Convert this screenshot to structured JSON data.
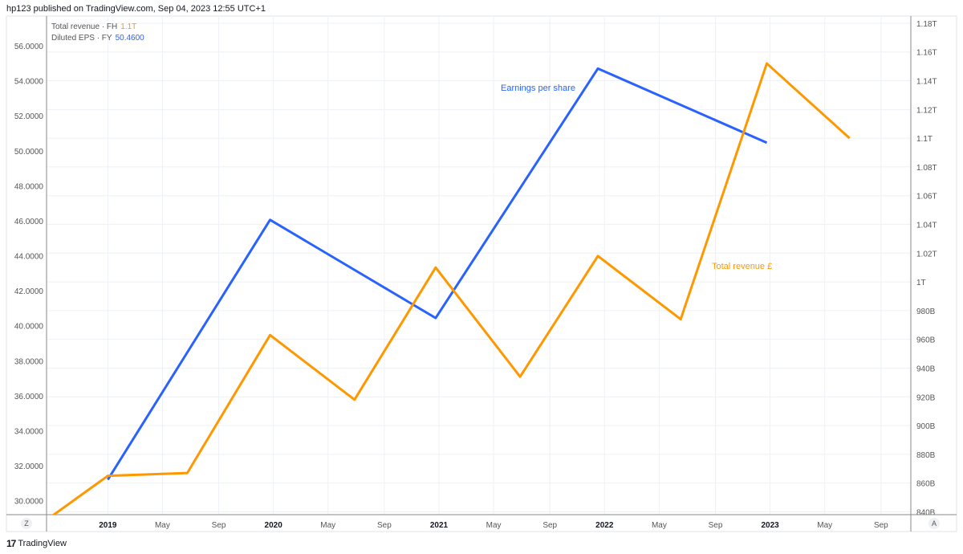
{
  "header": {
    "text": "hp123 published on TradingView.com, Sep 04, 2023 12:55 UTC+1"
  },
  "legend": [
    {
      "label": "Total revenue · FH",
      "value": "1.1T",
      "color": "#ff9800"
    },
    {
      "label": "Diluted EPS · FY",
      "value": "50.4600",
      "color": "#2962ff"
    }
  ],
  "annotations": {
    "eps": "Earnings per share",
    "revenue": "Total revenue £"
  },
  "corners": {
    "left": "Z",
    "right": "A"
  },
  "footer": {
    "logo": "17",
    "brand": "TradingView"
  },
  "chart_data": {
    "type": "line",
    "x_ticks": [
      {
        "x": 2019.0,
        "label": "2019",
        "bold": true
      },
      {
        "x": 2019.33,
        "label": "May"
      },
      {
        "x": 2019.67,
        "label": "Sep"
      },
      {
        "x": 2020.0,
        "label": "2020",
        "bold": true
      },
      {
        "x": 2020.33,
        "label": "May"
      },
      {
        "x": 2020.67,
        "label": "Sep"
      },
      {
        "x": 2021.0,
        "label": "2021",
        "bold": true
      },
      {
        "x": 2021.33,
        "label": "May"
      },
      {
        "x": 2021.67,
        "label": "Sep"
      },
      {
        "x": 2022.0,
        "label": "2022",
        "bold": true
      },
      {
        "x": 2022.33,
        "label": "May"
      },
      {
        "x": 2022.67,
        "label": "Sep"
      },
      {
        "x": 2023.0,
        "label": "2023",
        "bold": true
      },
      {
        "x": 2023.33,
        "label": "May"
      },
      {
        "x": 2023.67,
        "label": "Sep"
      }
    ],
    "xlim": [
      2018.63,
      2023.85
    ],
    "left_axis": {
      "ylim": [
        29.2,
        57.7
      ],
      "ticks": [
        "56.0000",
        "54.0000",
        "52.0000",
        "50.0000",
        "48.0000",
        "46.0000",
        "44.0000",
        "42.0000",
        "40.0000",
        "38.0000",
        "36.0000",
        "34.0000",
        "32.0000",
        "30.0000"
      ],
      "tick_values": [
        56,
        54,
        52,
        50,
        48,
        46,
        44,
        42,
        40,
        38,
        36,
        34,
        32,
        30
      ]
    },
    "right_axis": {
      "ylim": [
        838,
        1185
      ],
      "ticks": [
        "1.18T",
        "1.16T",
        "1.14T",
        "1.12T",
        "1.1T",
        "1.08T",
        "1.06T",
        "1.04T",
        "1.02T",
        "1T",
        "980B",
        "960B",
        "940B",
        "920B",
        "900B",
        "880B",
        "860B",
        "840B"
      ],
      "tick_values": [
        1180,
        1160,
        1140,
        1120,
        1100,
        1080,
        1060,
        1040,
        1020,
        1000,
        980,
        960,
        940,
        920,
        900,
        880,
        860,
        840
      ],
      "unit": "B"
    },
    "series": [
      {
        "name": "Diluted EPS · FY",
        "axis": "left",
        "color": "#2962ff",
        "x": [
          2019.0,
          2019.98,
          2020.98,
          2021.96,
          2022.98
        ],
        "y": [
          31.2,
          46.05,
          40.44,
          54.7,
          50.46
        ]
      },
      {
        "name": "Total revenue · FH",
        "axis": "right",
        "color": "#ff9800",
        "x": [
          2018.65,
          2019.0,
          2019.48,
          2019.98,
          2020.49,
          2020.98,
          2021.49,
          2021.96,
          2022.46,
          2022.98,
          2023.48
        ],
        "y": [
          836,
          865,
          867,
          963,
          918,
          1010,
          934,
          1018,
          974,
          1152,
          1100
        ]
      }
    ]
  }
}
